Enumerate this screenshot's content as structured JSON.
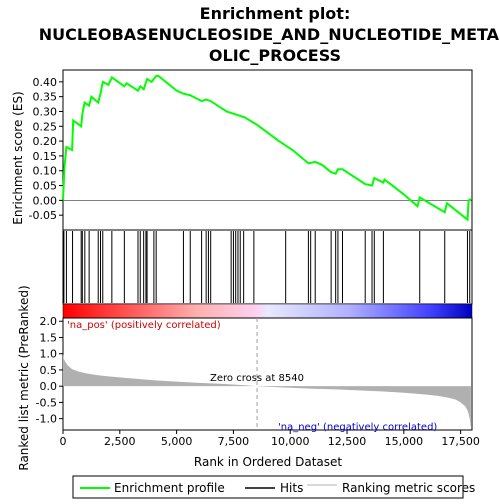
{
  "title_lines": [
    "Enrichment plot:",
    "NUCLEOBASENUCLEOSIDE_AND_NUCLEOTIDE_METAB",
    "OLIC_PROCESS"
  ],
  "colors": {
    "enrichment_line": "#00ff00",
    "hits": "#000000",
    "metric_fill": "#b0b0b0",
    "pos_label": "#cc0000",
    "neg_label": "#0000cc",
    "bar_red": "#ff0000",
    "bar_blue": "#0000ff"
  },
  "chart_data": [
    {
      "type": "line",
      "name": "enrichment-profile",
      "ylabel": "Enrichment score (ES)",
      "xlim": [
        0,
        18000
      ],
      "ylim": [
        -0.1,
        0.44
      ],
      "yticks": [
        "-0.05",
        "0.00",
        "0.05",
        "0.10",
        "0.15",
        "0.20",
        "0.25",
        "0.30",
        "0.35",
        "0.40"
      ],
      "points": [
        [
          0,
          0.0
        ],
        [
          60,
          0.11
        ],
        [
          150,
          0.18
        ],
        [
          400,
          0.17
        ],
        [
          450,
          0.27
        ],
        [
          800,
          0.25
        ],
        [
          850,
          0.29
        ],
        [
          950,
          0.33
        ],
        [
          1150,
          0.32
        ],
        [
          1250,
          0.35
        ],
        [
          1550,
          0.33
        ],
        [
          1650,
          0.36
        ],
        [
          1750,
          0.4
        ],
        [
          2000,
          0.39
        ],
        [
          2150,
          0.415
        ],
        [
          2700,
          0.385
        ],
        [
          2800,
          0.395
        ],
        [
          3300,
          0.37
        ],
        [
          3400,
          0.385
        ],
        [
          3550,
          0.375
        ],
        [
          3700,
          0.41
        ],
        [
          3900,
          0.4
        ],
        [
          4100,
          0.42
        ],
        [
          4200,
          0.42
        ],
        [
          5000,
          0.37
        ],
        [
          5300,
          0.36
        ],
        [
          5600,
          0.355
        ],
        [
          6100,
          0.335
        ],
        [
          6300,
          0.34
        ],
        [
          6500,
          0.335
        ],
        [
          7200,
          0.3
        ],
        [
          7600,
          0.29
        ],
        [
          8000,
          0.28
        ],
        [
          8540,
          0.255
        ],
        [
          9500,
          0.2
        ],
        [
          10100,
          0.17
        ],
        [
          10800,
          0.125
        ],
        [
          11100,
          0.13
        ],
        [
          11400,
          0.12
        ],
        [
          11800,
          0.095
        ],
        [
          12000,
          0.09
        ],
        [
          12100,
          0.105
        ],
        [
          12300,
          0.105
        ],
        [
          12900,
          0.075
        ],
        [
          13300,
          0.055
        ],
        [
          13600,
          0.05
        ],
        [
          13700,
          0.075
        ],
        [
          14100,
          0.06
        ],
        [
          14150,
          0.07
        ],
        [
          14500,
          0.05
        ],
        [
          15000,
          0.02
        ],
        [
          15600,
          -0.02
        ],
        [
          15700,
          0.01
        ],
        [
          16800,
          -0.04
        ],
        [
          16900,
          -0.01
        ],
        [
          17800,
          -0.065
        ],
        [
          17850,
          0.0
        ],
        [
          17950,
          0.005
        ]
      ]
    },
    {
      "type": "hits",
      "name": "hits",
      "xlim": [
        0,
        18000
      ],
      "positions": [
        40,
        150,
        420,
        800,
        850,
        960,
        1150,
        1550,
        1650,
        1750,
        2150,
        2700,
        3300,
        3400,
        3550,
        3650,
        3700,
        4000,
        4100,
        5300,
        5600,
        6100,
        6300,
        6400,
        6500,
        7400,
        7500,
        7600,
        7700,
        7800,
        7950,
        8400,
        9800,
        10800,
        10900,
        11100,
        11800,
        12000,
        12100,
        12300,
        13300,
        13600,
        13700,
        14100,
        15700,
        16800,
        17800,
        17900
      ]
    },
    {
      "type": "area",
      "name": "ranking-metric",
      "xlabel": "Rank in Ordered Dataset",
      "ylabel": "Ranked list metric (PreRanked)",
      "xlim": [
        0,
        18000
      ],
      "ylim": [
        -1.35,
        2.1
      ],
      "yticks": [
        "-1.0",
        "-0.5",
        "0.0",
        "0.5",
        "1.0",
        "1.5",
        "2.0"
      ],
      "xticks": [
        "0",
        "2,500",
        "5,000",
        "7,500",
        "10,000",
        "12,500",
        "15,000",
        "17,500"
      ],
      "points": [
        [
          0,
          1.0
        ],
        [
          30,
          0.85
        ],
        [
          100,
          0.75
        ],
        [
          200,
          0.65
        ],
        [
          400,
          0.52
        ],
        [
          700,
          0.45
        ],
        [
          1000,
          0.4
        ],
        [
          1500,
          0.34
        ],
        [
          2000,
          0.3
        ],
        [
          3000,
          0.24
        ],
        [
          4000,
          0.18
        ],
        [
          5000,
          0.14
        ],
        [
          6000,
          0.1
        ],
        [
          7000,
          0.07
        ],
        [
          8000,
          0.03
        ],
        [
          8540,
          0.0
        ],
        [
          9000,
          -0.02
        ],
        [
          10000,
          -0.05
        ],
        [
          11000,
          -0.08
        ],
        [
          12000,
          -0.1
        ],
        [
          13000,
          -0.13
        ],
        [
          14000,
          -0.16
        ],
        [
          15000,
          -0.2
        ],
        [
          16000,
          -0.26
        ],
        [
          16500,
          -0.3
        ],
        [
          17000,
          -0.36
        ],
        [
          17300,
          -0.42
        ],
        [
          17500,
          -0.5
        ],
        [
          17700,
          -0.62
        ],
        [
          17800,
          -0.75
        ],
        [
          17850,
          -0.85
        ],
        [
          17900,
          -1.0
        ],
        [
          17950,
          -1.3
        ]
      ],
      "zero_cross_label": "Zero cross at 8540",
      "zero_cross": 8540,
      "pos_label": "'na_pos' (positively correlated)",
      "neg_label": "'na_neg' (negatively correlated)"
    }
  ],
  "legend": [
    {
      "label": "Enrichment profile",
      "kind": "line",
      "color": "#00ff00"
    },
    {
      "label": "Hits",
      "kind": "line",
      "color": "#000000"
    },
    {
      "label": "Ranking metric scores",
      "kind": "line",
      "color": "#b0b0b0"
    }
  ]
}
